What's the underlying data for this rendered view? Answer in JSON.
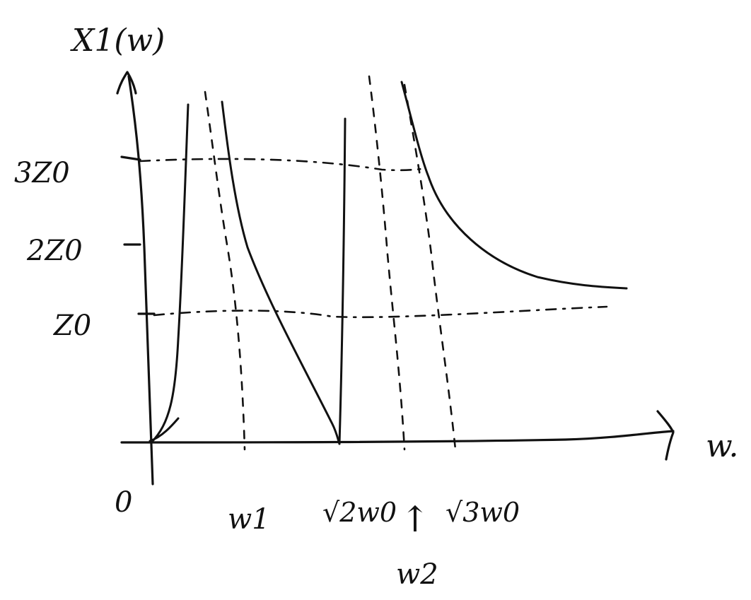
{
  "axes": {
    "y_label": "X1(w)",
    "x_label": "w.",
    "origin_label": "0"
  },
  "y_ticks": {
    "z0": "Z0",
    "two_z0": "2Z0",
    "three_z0": "3Z0"
  },
  "x_ticks": {
    "w1": "w1",
    "sqrt2_w0": "√2w0",
    "sqrt3_w0": "√3w0",
    "w2": "w2"
  },
  "marker": {
    "arrow_up": "↑"
  }
}
